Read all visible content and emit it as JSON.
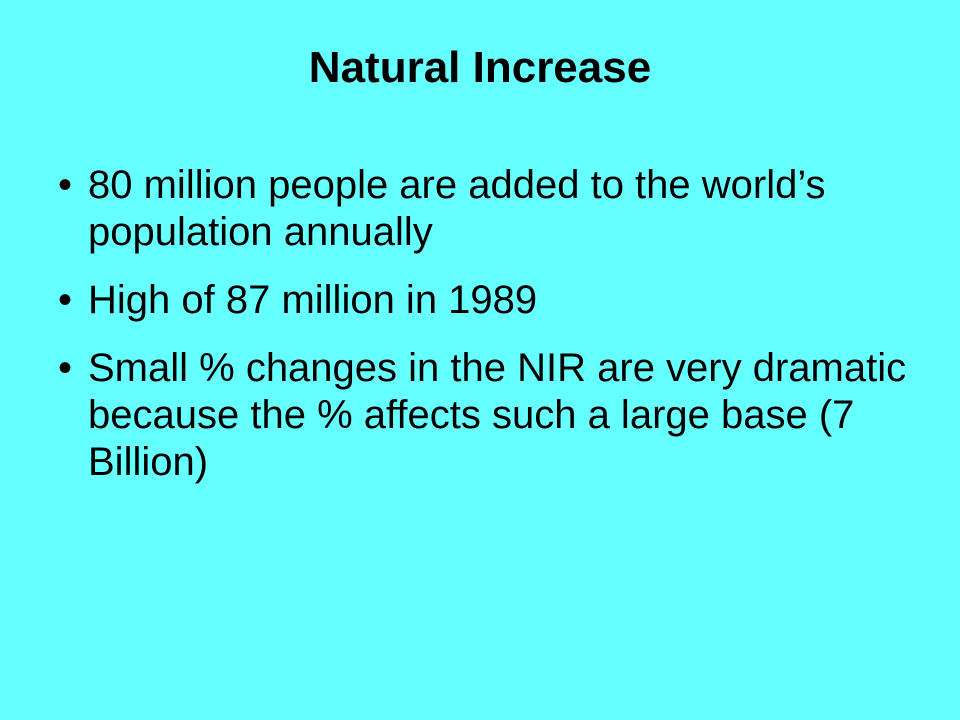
{
  "slide": {
    "title": "Natural Increase",
    "bullet_symbol": "•",
    "bullets": [
      "80 million people are added to the world’s population annually",
      "High of 87 million in 1989",
      "Small % changes in the NIR are very dramatic because the % affects such a large base (7 Billion)"
    ],
    "background_color": "#66ffff",
    "text_color": "#000000"
  }
}
